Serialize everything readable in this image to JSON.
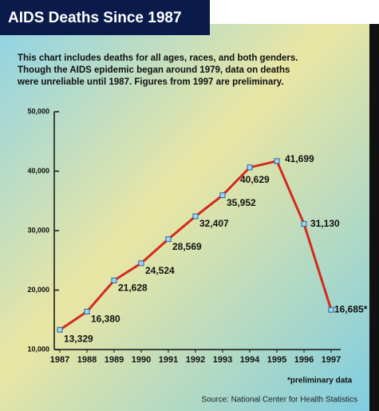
{
  "chart_data": {
    "type": "line",
    "title": "AIDS Deaths Since 1987",
    "subtitle": [
      "This chart includes deaths for all ages, races, and both genders.",
      "Though the AIDS epidemic began around 1979, data on deaths",
      "were unreliable until 1987. Figures from 1997 are preliminary."
    ],
    "categories": [
      "1987",
      "1988",
      "1989",
      "1990",
      "1991",
      "1992",
      "1993",
      "1994",
      "1995",
      "1996",
      "1997"
    ],
    "series": [
      {
        "name": "AIDS deaths",
        "color": "#d42a1e",
        "values": [
          13329,
          16380,
          21628,
          24524,
          28569,
          32407,
          35952,
          40629,
          41699,
          31130,
          16685
        ],
        "value_labels": [
          "13,329",
          "16,380",
          "21,628",
          "24,524",
          "28,569",
          "32,407",
          "35,952",
          "40,629",
          "41,699",
          "31,130",
          "16,685*"
        ]
      }
    ],
    "ylim": [
      10000,
      50000
    ],
    "yticks": [
      {
        "value": 10000,
        "label": "10,000"
      },
      {
        "value": 20000,
        "label": "20,000"
      },
      {
        "value": 30000,
        "label": "30,000"
      },
      {
        "value": 40000,
        "label": "40,000"
      },
      {
        "value": 50000,
        "label": "50,000"
      }
    ],
    "footnote": "*preliminary data",
    "source": "Source:  National Center for Health Statistics"
  }
}
